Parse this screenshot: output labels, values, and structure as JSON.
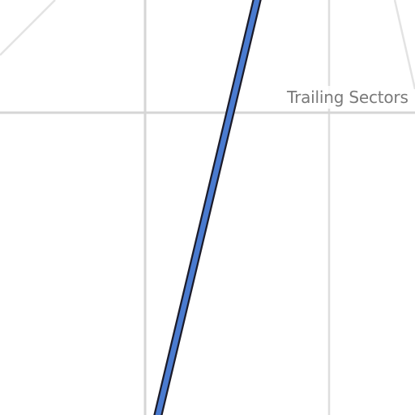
{
  "map": {
    "street_label": "Trailing Sectors",
    "colors": {
      "background": "#ffffff",
      "minor_road": "#d9d9d9",
      "route_fill": "#4a7bd0",
      "route_outline": "#1b1b2a",
      "label": "#7a7a7a"
    }
  }
}
